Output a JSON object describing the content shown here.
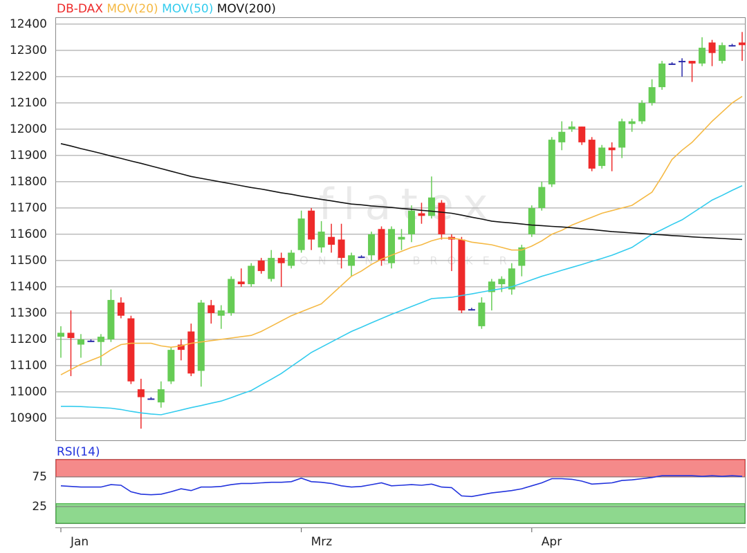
{
  "chart_data": [
    {
      "type": "candlestick",
      "categories": [
        "Jan",
        null,
        null,
        null,
        null,
        null,
        null,
        null,
        null,
        null,
        null,
        null,
        null,
        null,
        null,
        null,
        null,
        null,
        null,
        null,
        null,
        null,
        null,
        null,
        "Mrz",
        null,
        null,
        null,
        null,
        null,
        null,
        null,
        null,
        null,
        null,
        null,
        null,
        null,
        null,
        null,
        null,
        null,
        null,
        null,
        null,
        null,
        null,
        "Apr",
        null,
        null,
        null,
        null,
        null,
        null,
        null,
        null,
        null,
        null,
        null,
        null,
        null,
        null,
        null,
        null,
        null,
        null,
        null,
        null,
        null
      ],
      "watermark": [
        "flatex",
        "ONLINE BROKER"
      ],
      "ylim": [
        10813,
        12426
      ],
      "yticks": [
        10900,
        11000,
        11100,
        11200,
        11300,
        11400,
        11500,
        11600,
        11700,
        11800,
        11900,
        12000,
        12100,
        12200,
        12300,
        12400
      ],
      "grid": true,
      "up_color": "#66cc55",
      "down_color": "#ee2a2a",
      "flat_color": "#2a2aaa",
      "series": [
        {
          "name": "DB-DAX",
          "color": "#ee2a2a",
          "open": [
            11210,
            11225,
            11180,
            11195,
            11190,
            11200,
            11340,
            11280,
            11010,
            10975,
            10960,
            11040,
            11180,
            11230,
            11080,
            11330,
            11290,
            11300,
            11420,
            11410,
            11500,
            11430,
            11510,
            11480,
            11540,
            11690,
            11550,
            11590,
            11580,
            11480,
            11515,
            11520,
            11620,
            11490,
            11580,
            11600,
            11680,
            11670,
            11720,
            11590,
            11580,
            11315,
            11250,
            11380,
            11410,
            11390,
            11480,
            11600,
            11700,
            11790,
            11950,
            12000,
            12010,
            11960,
            11860,
            11930,
            11930,
            12020,
            12030,
            12100,
            12160,
            12250,
            12260,
            12260,
            12250,
            12330,
            12260,
            12320,
            12330
          ],
          "high": [
            11250,
            11310,
            11220,
            11200,
            11220,
            11390,
            11360,
            11290,
            11050,
            10980,
            11040,
            11170,
            11200,
            11260,
            11350,
            11350,
            11330,
            11440,
            11470,
            11490,
            11510,
            11540,
            11530,
            11540,
            11690,
            11700,
            11650,
            11640,
            11640,
            11530,
            11520,
            11610,
            11630,
            11630,
            11620,
            11710,
            11720,
            11820,
            11730,
            11600,
            11590,
            11320,
            11360,
            11430,
            11440,
            11490,
            11560,
            11710,
            11800,
            11970,
            12030,
            12030,
            12010,
            11970,
            11940,
            11950,
            12040,
            12040,
            12110,
            12190,
            12260,
            12255,
            12270,
            12260,
            12350,
            12340,
            12330,
            12325,
            12370
          ],
          "low": [
            11130,
            11060,
            11130,
            11190,
            11100,
            11190,
            11280,
            11030,
            10860,
            10970,
            10940,
            11030,
            11120,
            11060,
            11020,
            11260,
            11240,
            11290,
            11400,
            11400,
            11450,
            11420,
            11400,
            11470,
            11530,
            11540,
            11530,
            11530,
            11470,
            11440,
            11510,
            11500,
            11480,
            11470,
            11540,
            11570,
            11640,
            11660,
            11580,
            11460,
            11300,
            11310,
            11240,
            11310,
            11380,
            11370,
            11440,
            11590,
            11690,
            11780,
            11920,
            11990,
            11940,
            11840,
            11850,
            11840,
            11890,
            11990,
            12020,
            12090,
            12150,
            12245,
            12200,
            12180,
            12240,
            12240,
            12250,
            12315,
            12260
          ],
          "close": [
            11225,
            11205,
            11200,
            11195,
            11210,
            11350,
            11290,
            11040,
            10980,
            10975,
            11010,
            11160,
            11160,
            11070,
            11340,
            11300,
            11310,
            11430,
            11410,
            11480,
            11460,
            11510,
            11490,
            11530,
            11660,
            11580,
            11610,
            11560,
            11510,
            11520,
            11515,
            11600,
            11500,
            11620,
            11590,
            11690,
            11670,
            11740,
            11600,
            11580,
            11310,
            11315,
            11340,
            11420,
            11430,
            11470,
            11550,
            11700,
            11780,
            11960,
            11990,
            12010,
            11950,
            11850,
            11930,
            11920,
            12030,
            12030,
            12100,
            12160,
            12250,
            12250,
            12260,
            12250,
            12310,
            12290,
            12320,
            12320,
            12320
          ]
        },
        {
          "name": "MOV(20)",
          "color": "#f5b944",
          "values": [
            11065,
            11085,
            11105,
            11120,
            11135,
            11160,
            11180,
            11185,
            11185,
            11185,
            11175,
            11170,
            11175,
            11185,
            11190,
            11195,
            11200,
            11205,
            11210,
            11215,
            11230,
            11250,
            11270,
            11290,
            11305,
            11320,
            11335,
            11370,
            11405,
            11440,
            11460,
            11485,
            11505,
            11520,
            11535,
            11550,
            11560,
            11575,
            11585,
            11585,
            11580,
            11570,
            11565,
            11560,
            11550,
            11540,
            11540,
            11555,
            11575,
            11600,
            11615,
            11635,
            11650,
            11665,
            11680,
            11690,
            11700,
            11710,
            11735,
            11760,
            11820,
            11885,
            11920,
            11950,
            11990,
            12030,
            12065,
            12100,
            12125
          ]
        },
        {
          "name": "MOV(50)",
          "color": "#33ccee",
          "values": [
            10945,
            10945,
            10944,
            10942,
            10940,
            10938,
            10933,
            10926,
            10920,
            10916,
            10913,
            10922,
            10931,
            10940,
            10948,
            10957,
            10965,
            10978,
            10992,
            11005,
            11027,
            11048,
            11070,
            11097,
            11123,
            11150,
            11170,
            11190,
            11210,
            11230,
            11246,
            11263,
            11279,
            11295,
            11310,
            11325,
            11340,
            11355,
            11358,
            11360,
            11367,
            11373,
            11380,
            11387,
            11393,
            11400,
            11413,
            11427,
            11440,
            11451,
            11463,
            11474,
            11485,
            11497,
            11508,
            11520,
            11535,
            11550,
            11575,
            11600,
            11618,
            11637,
            11655,
            11680,
            11705,
            11730,
            11748,
            11767,
            11785
          ]
        },
        {
          "name": "MOV(200)",
          "color": "#111111",
          "values": [
            11945,
            11936,
            11926,
            11917,
            11908,
            11898,
            11889,
            11879,
            11870,
            11860,
            11850,
            11840,
            11830,
            11820,
            11813,
            11806,
            11799,
            11792,
            11785,
            11778,
            11772,
            11765,
            11758,
            11752,
            11745,
            11739,
            11733,
            11727,
            11721,
            11715,
            11712,
            11708,
            11705,
            11702,
            11698,
            11695,
            11691,
            11688,
            11684,
            11680,
            11673,
            11665,
            11658,
            11650,
            11646,
            11643,
            11639,
            11635,
            11633,
            11630,
            11628,
            11625,
            11621,
            11618,
            11614,
            11610,
            11608,
            11605,
            11603,
            11600,
            11598,
            11595,
            11593,
            11590,
            11588,
            11586,
            11584,
            11582,
            11580
          ]
        }
      ]
    },
    {
      "type": "line",
      "title": "RSI(14)",
      "color": "#2233dd",
      "ylim": [
        -3,
        104
      ],
      "yticks": [
        25,
        75
      ],
      "bands": [
        {
          "range": [
            75,
            104
          ],
          "color": "#f58a8a",
          "edge": "#dd3333"
        },
        {
          "range": [
            -3,
            30
          ],
          "color": "#8ed88e",
          "edge": "#33aa33"
        }
      ],
      "values": [
        60,
        59,
        58,
        58,
        58,
        62,
        61,
        50,
        46,
        45,
        46,
        50,
        55,
        52,
        58,
        58,
        59,
        62,
        64,
        64,
        65,
        66,
        66,
        67,
        73,
        67,
        66,
        64,
        60,
        58,
        59,
        62,
        65,
        60,
        61,
        62,
        61,
        63,
        58,
        57,
        43,
        42,
        45,
        48,
        50,
        52,
        55,
        60,
        65,
        72,
        72,
        71,
        68,
        63,
        64,
        65,
        69,
        70,
        72,
        74,
        77,
        77,
        77,
        77,
        76,
        77,
        76,
        77,
        76
      ]
    }
  ]
}
